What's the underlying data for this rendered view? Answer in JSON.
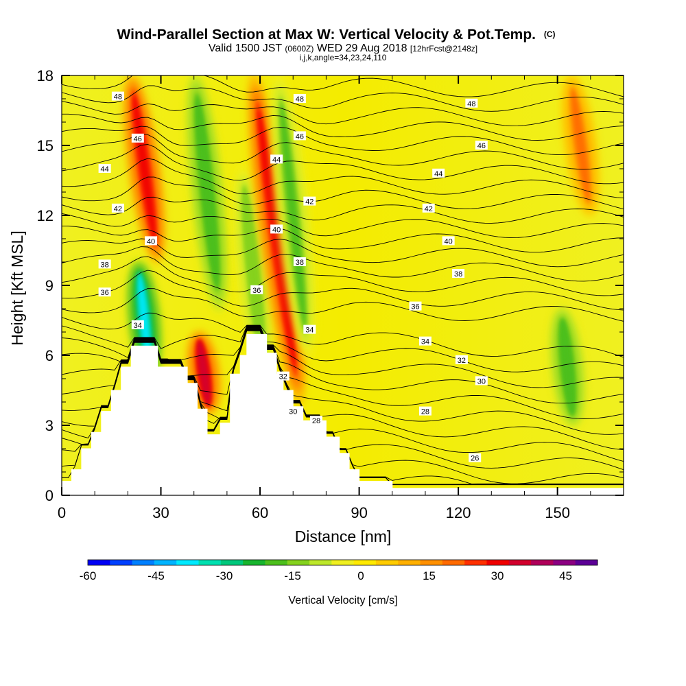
{
  "chart_data": {
    "type": "heatmap",
    "title": "Wind-Parallel Section at Max W: Vertical Velocity & Pot.Temp.",
    "title_mark": "(C)",
    "subtitle_parts": [
      "Valid 1500 JST ",
      "(0600Z)",
      " WED 29 Aug 2018 ",
      "[12hrFcst@2148z]"
    ],
    "subtitle_line2": "i,j,k,angle=34,23,24,110",
    "xlabel": "Distance [nm]",
    "ylabel": "Height [Kft MSL]",
    "xlim": [
      0,
      170
    ],
    "ylim": [
      0,
      18
    ],
    "x_ticks": [
      0,
      30,
      60,
      90,
      120,
      150
    ],
    "y_ticks": [
      0,
      3,
      6,
      9,
      12,
      15,
      18
    ],
    "colorbar": {
      "title": "Vertical Velocity [cm/s]",
      "range": [
        -60,
        52
      ],
      "ticks": [
        -60,
        -45,
        -30,
        -15,
        0,
        15,
        30,
        45
      ],
      "colors": [
        "#0000f5",
        "#0040ff",
        "#0080ff",
        "#00b4ff",
        "#00eaff",
        "#00e0b0",
        "#00c87c",
        "#17b52e",
        "#4cbf1c",
        "#85d21e",
        "#bde82a",
        "#f0f020",
        "#ffea00",
        "#ffcc00",
        "#ffb000",
        "#ff9000",
        "#ff6a00",
        "#ff3000",
        "#f00000",
        "#d2002d",
        "#b0005a",
        "#8c0082",
        "#5c0096"
      ]
    },
    "velocity_features": [
      {
        "type": "updraft",
        "x": 25,
        "z_range": [
          10,
          18
        ],
        "peak_cm_s": 32
      },
      {
        "type": "downdraft",
        "x": 25,
        "z_range": [
          5,
          10
        ],
        "peak_cm_s": -36
      },
      {
        "type": "downdraft",
        "x": 44,
        "z_range": [
          8,
          18
        ],
        "peak_cm_s": -20
      },
      {
        "type": "updraft",
        "x": 43,
        "z_range": [
          3.5,
          7
        ],
        "peak_cm_s": 35
      },
      {
        "type": "downdraft",
        "x": 58,
        "z_range": [
          5,
          14
        ],
        "peak_cm_s": -15
      },
      {
        "type": "updraft",
        "x": 65,
        "z_range": [
          4,
          18
        ],
        "peak_cm_s": 32
      },
      {
        "type": "downdraft",
        "x": 70,
        "z_range": [
          6,
          18
        ],
        "peak_cm_s": -18
      },
      {
        "type": "downdraft",
        "x": 153,
        "z_range": [
          3,
          8
        ],
        "peak_cm_s": -20
      },
      {
        "type": "updraft",
        "x": 157,
        "z_range": [
          12,
          18
        ],
        "peak_cm_s": 18
      }
    ],
    "terrain": [
      [
        0,
        0.6
      ],
      [
        3,
        0.6
      ],
      [
        3,
        1.1
      ],
      [
        6,
        1.1
      ],
      [
        6,
        2.0
      ],
      [
        9,
        2.0
      ],
      [
        9,
        2.7
      ],
      [
        12,
        2.7
      ],
      [
        12,
        3.6
      ],
      [
        15,
        3.6
      ],
      [
        15,
        4.5
      ],
      [
        18,
        4.5
      ],
      [
        18,
        5.5
      ],
      [
        21,
        5.5
      ],
      [
        21,
        6.4
      ],
      [
        29,
        6.4
      ],
      [
        29,
        5.5
      ],
      [
        38,
        5.5
      ],
      [
        38,
        4.8
      ],
      [
        41,
        4.8
      ],
      [
        41,
        3.7
      ],
      [
        44,
        3.7
      ],
      [
        44,
        2.6
      ],
      [
        48,
        2.6
      ],
      [
        48,
        3.1
      ],
      [
        51,
        3.1
      ],
      [
        51,
        5.2
      ],
      [
        54,
        5.2
      ],
      [
        54,
        6.0
      ],
      [
        56,
        6.0
      ],
      [
        56,
        6.9
      ],
      [
        62,
        6.9
      ],
      [
        62,
        6.1
      ],
      [
        65,
        6.1
      ],
      [
        65,
        5.2
      ],
      [
        67,
        5.2
      ],
      [
        67,
        4.5
      ],
      [
        70,
        4.5
      ],
      [
        70,
        3.8
      ],
      [
        73,
        3.8
      ],
      [
        73,
        3.2
      ],
      [
        80,
        3.2
      ],
      [
        80,
        2.5
      ],
      [
        84,
        2.5
      ],
      [
        84,
        1.8
      ],
      [
        87,
        1.8
      ],
      [
        87,
        1.1
      ],
      [
        90,
        1.1
      ],
      [
        90,
        0.6
      ],
      [
        100,
        0.6
      ],
      [
        100,
        0.3
      ],
      [
        170,
        0.3
      ]
    ],
    "theta_contours": [
      26,
      28,
      30,
      32,
      34,
      36,
      38,
      40,
      42,
      44,
      46,
      48
    ],
    "contour_labels": [
      {
        "text": "48",
        "x": 17,
        "z": 17.1
      },
      {
        "text": "46",
        "x": 23,
        "z": 15.3
      },
      {
        "text": "44",
        "x": 13,
        "z": 14.0
      },
      {
        "text": "42",
        "x": 17,
        "z": 12.3
      },
      {
        "text": "40",
        "x": 27,
        "z": 10.9
      },
      {
        "text": "38",
        "x": 13,
        "z": 9.9
      },
      {
        "text": "36",
        "x": 13,
        "z": 8.7
      },
      {
        "text": "34",
        "x": 23,
        "z": 7.3
      },
      {
        "text": "48",
        "x": 72,
        "z": 17.0
      },
      {
        "text": "46",
        "x": 72,
        "z": 15.4
      },
      {
        "text": "44",
        "x": 65,
        "z": 14.4
      },
      {
        "text": "42",
        "x": 75,
        "z": 12.6
      },
      {
        "text": "40",
        "x": 65,
        "z": 11.4
      },
      {
        "text": "38",
        "x": 72,
        "z": 10.0
      },
      {
        "text": "36",
        "x": 59,
        "z": 8.8
      },
      {
        "text": "34",
        "x": 75,
        "z": 7.1
      },
      {
        "text": "32",
        "x": 67,
        "z": 5.1
      },
      {
        "text": "30",
        "x": 70,
        "z": 3.6
      },
      {
        "text": "28",
        "x": 77,
        "z": 3.2
      },
      {
        "text": "48",
        "x": 124,
        "z": 16.8
      },
      {
        "text": "46",
        "x": 127,
        "z": 15.0
      },
      {
        "text": "44",
        "x": 114,
        "z": 13.8
      },
      {
        "text": "42",
        "x": 111,
        "z": 12.3
      },
      {
        "text": "40",
        "x": 117,
        "z": 10.9
      },
      {
        "text": "38",
        "x": 120,
        "z": 9.5
      },
      {
        "text": "36",
        "x": 107,
        "z": 8.1
      },
      {
        "text": "34",
        "x": 110,
        "z": 6.6
      },
      {
        "text": "32",
        "x": 121,
        "z": 5.8
      },
      {
        "text": "30",
        "x": 127,
        "z": 4.9
      },
      {
        "text": "28",
        "x": 110,
        "z": 3.6
      },
      {
        "text": "26",
        "x": 125,
        "z": 1.6
      }
    ]
  }
}
